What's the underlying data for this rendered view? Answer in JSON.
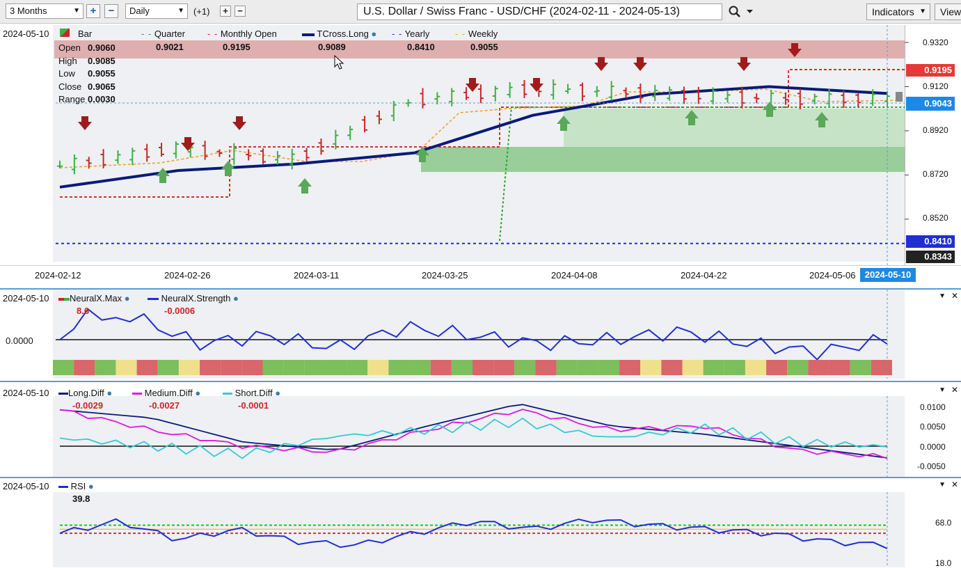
{
  "toolbar": {
    "range": "3 Months",
    "interval": "Daily",
    "offset": "(+1)",
    "title": "U.S. Dollar / Swiss Franc - USD/CHF (2024-02-11 - 2024-05-13)",
    "indicators": "Indicators",
    "view": "View"
  },
  "main": {
    "date": "2024-05-10",
    "legend": {
      "bar": "Bar",
      "quarter": "Quarter",
      "monthly_open": "Monthly Open",
      "tcross": "TCross.Long",
      "yearly": "Yearly",
      "weekly": "Weekly"
    },
    "values": {
      "quarter": "0.9021",
      "monthly_open": "0.9195",
      "tcross": "0.9089",
      "yearly": "0.8410",
      "weekly": "0.9055"
    },
    "ohlc": {
      "open_l": "Open",
      "open": "0.9060",
      "high_l": "High",
      "high": "0.9085",
      "low_l": "Low",
      "low": "0.9055",
      "close_l": "Close",
      "close": "0.9065",
      "range_l": "Range",
      "range": "0.0030"
    },
    "price_axis": [
      "0.9320",
      "0.9120",
      "0.8920",
      "0.8720",
      "0.8520"
    ],
    "price_tags": {
      "monthly": "0.9195",
      "current": "0.9043",
      "yearly": "0.8410",
      "low": "0.8343"
    },
    "dates": [
      "2024-02-12",
      "2024-02-26",
      "2024-03-11",
      "2024-03-25",
      "2024-04-08",
      "2024-04-22",
      "2024-05-06"
    ],
    "cursor_date": "2024-05-10"
  },
  "neural": {
    "date": "2024-05-10",
    "max_l": "NeuralX.Max",
    "max": "8.6",
    "strength_l": "NeuralX.Strength",
    "strength": "-0.0006",
    "axis": "0.0000"
  },
  "diff": {
    "date": "2024-05-10",
    "long_l": "Long.Diff",
    "long": "-0.0029",
    "medium_l": "Medium.Diff",
    "medium": "-0.0027",
    "short_l": "Short.Diff",
    "short": "-0.0001",
    "axis": [
      "0.0100",
      "0.0050",
      "0.0000",
      "-0.0050"
    ]
  },
  "rsi": {
    "date": "2024-05-10",
    "label": "RSI",
    "value": "39.8",
    "axis": [
      "68.0",
      "18.0"
    ]
  },
  "icons": {
    "search": "search-icon",
    "close": "close-icon",
    "collapse": "collapse-icon"
  },
  "colors": {
    "accent": "#1a5fb4",
    "bull": "#4caf50",
    "bear": "#a01c1c",
    "tcross": "#0a1a7a"
  },
  "chart_data": [
    {
      "type": "line",
      "title": "U.S. Dollar / Swiss Franc - USD/CHF (2024-02-11 - 2024-05-13)",
      "x": [
        "2024-02-12",
        "2024-02-26",
        "2024-03-11",
        "2024-03-25",
        "2024-04-08",
        "2024-04-22",
        "2024-05-06",
        "2024-05-10"
      ],
      "series": [
        {
          "name": "TCross.Long",
          "values": [
            0.8665,
            0.874,
            0.877,
            0.882,
            0.899,
            0.9085,
            0.912,
            0.9089
          ]
        },
        {
          "name": "Bar",
          "values": [
            0.876,
            0.884,
            0.879,
            0.906,
            0.911,
            0.909,
            0.9065,
            0.9065
          ]
        }
      ],
      "ylim": [
        0.8343,
        0.932
      ]
    },
    {
      "type": "line",
      "series": [
        {
          "name": "NeuralX.Strength",
          "values": [
            0.0,
            0.6,
            -0.1,
            0.1,
            -0.2,
            0.3,
            0.1,
            -0.1,
            0.0,
            0.2,
            -0.1,
            -0.3,
            0.0
          ]
        }
      ]
    },
    {
      "type": "line",
      "series": [
        {
          "name": "Long.Diff",
          "values": [
            0.009,
            0.007,
            0.001,
            -0.001,
            0.005,
            0.0105,
            0.005,
            0.003,
            0.0,
            -0.0029
          ]
        },
        {
          "name": "Medium.Diff",
          "values": [
            0.009,
            0.004,
            0.0,
            -0.0015,
            0.004,
            0.009,
            0.004,
            0.005,
            -0.001,
            -0.0027
          ]
        },
        {
          "name": "Short.Diff",
          "values": [
            0.002,
            0.0,
            -0.002,
            0.0025,
            0.004,
            0.006,
            0.002,
            0.0045,
            0.001,
            -0.0001
          ]
        }
      ],
      "ylim": [
        -0.005,
        0.01
      ]
    },
    {
      "type": "line",
      "series": [
        {
          "name": "RSI",
          "values": [
            55,
            70,
            47,
            60,
            45,
            40,
            55,
            70,
            60,
            72,
            65,
            60,
            55,
            45,
            40
          ]
        }
      ]
    }
  ]
}
